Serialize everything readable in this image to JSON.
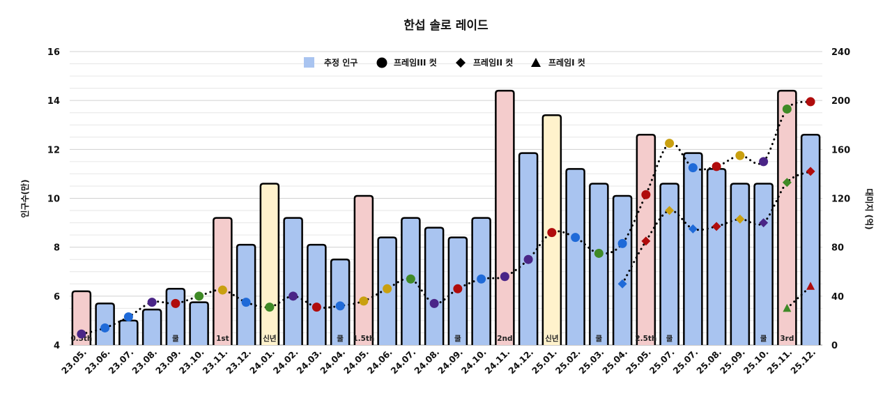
{
  "chart_data": {
    "type": "bar+line",
    "title": "한섭 솔로 레이드",
    "ylabel_left": "인구수(만)",
    "ylabel_right": "대미지 (억)",
    "ylim_left": [
      4,
      16
    ],
    "yticks_left": [
      4,
      6,
      8,
      10,
      12,
      14,
      16
    ],
    "ylim_right": [
      0,
      240
    ],
    "yticks_right": [
      0,
      40,
      80,
      120,
      160,
      200,
      240
    ],
    "grid": true,
    "legend_position": "top-center",
    "categories": [
      "23.05.",
      "23.06.",
      "23.07.",
      "23.08.",
      "23.09.",
      "23.10.",
      "23.11.",
      "23.12.",
      "24.01.",
      "24.02.",
      "24.03.",
      "24.04.",
      "24.05.",
      "24.06.",
      "24.07.",
      "24.08.",
      "24.09.",
      "24.10.",
      "24.11.",
      "24.12.",
      "25.01.",
      "25.02.",
      "25.03.",
      "25.04.",
      "25.05.",
      "25.07.",
      "25.07.",
      "25.08.",
      "25.09.",
      "25.10.",
      "25.11.",
      "25.12."
    ],
    "bar_series": {
      "name": "추정 인구",
      "axis": "left",
      "values": [
        6.2,
        5.7,
        5.0,
        5.45,
        6.3,
        5.75,
        9.2,
        8.1,
        10.6,
        9.2,
        8.1,
        7.5,
        10.1,
        8.4,
        9.2,
        8.8,
        8.4,
        9.2,
        14.4,
        11.85,
        13.4,
        11.2,
        10.6,
        10.1,
        12.6,
        10.6,
        11.85,
        11.2,
        10.6,
        10.6,
        14.4,
        12.6
      ],
      "bar_types": [
        "pink",
        "blue",
        "blue",
        "blue",
        "blue",
        "blue",
        "pink",
        "blue",
        "yellow",
        "blue",
        "blue",
        "blue",
        "pink",
        "blue",
        "blue",
        "blue",
        "blue",
        "blue",
        "pink",
        "blue",
        "yellow",
        "blue",
        "blue",
        "blue",
        "pink",
        "blue",
        "blue",
        "blue",
        "blue",
        "blue",
        "pink",
        "blue"
      ],
      "bar_labels": [
        "0.5th",
        "",
        "",
        "",
        "쿨",
        "",
        "1st",
        "",
        "신년",
        "",
        "",
        "쿨",
        "1.5th",
        "",
        "",
        "",
        "쿨",
        "",
        "2nd",
        "",
        "신년",
        "",
        "쿨",
        "",
        "2.5th",
        "쿨",
        "",
        "",
        "",
        "쿨",
        "3rd",
        ""
      ]
    },
    "line_series": [
      {
        "name": "프레임III 컷",
        "marker": "circle",
        "axis": "right",
        "values": [
          9,
          14,
          23,
          35,
          34,
          40,
          45,
          35,
          31,
          40,
          31,
          32,
          36,
          46,
          54,
          34,
          46,
          54,
          56,
          70,
          92,
          88,
          75,
          83,
          123,
          165,
          145,
          146,
          155,
          150,
          193,
          199
        ],
        "point_colors": [
          "purple",
          "blue",
          "blue",
          "purple",
          "red",
          "green",
          "gold",
          "blue",
          "green",
          "purple",
          "red",
          "blue",
          "gold",
          "gold",
          "green",
          "purple",
          "red",
          "blue",
          "purple",
          "purple",
          "red",
          "blue",
          "green",
          "blue",
          "red",
          "gold",
          "blue",
          "red",
          "gold",
          "purple",
          "green",
          "red"
        ]
      },
      {
        "name": "프레임II 컷",
        "marker": "diamond",
        "axis": "right",
        "values": [
          null,
          null,
          null,
          null,
          null,
          null,
          null,
          null,
          null,
          null,
          null,
          null,
          null,
          null,
          null,
          null,
          null,
          null,
          null,
          null,
          null,
          null,
          null,
          50,
          85,
          110,
          95,
          97,
          103,
          100,
          133,
          142
        ],
        "point_colors": [
          null,
          null,
          null,
          null,
          null,
          null,
          null,
          null,
          null,
          null,
          null,
          null,
          null,
          null,
          null,
          null,
          null,
          null,
          null,
          null,
          null,
          null,
          null,
          "blue",
          "red",
          "gold",
          "blue",
          "red",
          "gold",
          "purple",
          "green",
          "red"
        ]
      },
      {
        "name": "프레임I 컷",
        "marker": "triangle",
        "axis": "right",
        "values": [
          null,
          null,
          null,
          null,
          null,
          null,
          null,
          null,
          null,
          null,
          null,
          null,
          null,
          null,
          null,
          null,
          null,
          null,
          null,
          null,
          null,
          null,
          null,
          null,
          null,
          null,
          null,
          null,
          null,
          null,
          30,
          48
        ],
        "point_colors": [
          null,
          null,
          null,
          null,
          null,
          null,
          null,
          null,
          null,
          null,
          null,
          null,
          null,
          null,
          null,
          null,
          null,
          null,
          null,
          null,
          null,
          null,
          null,
          null,
          null,
          null,
          null,
          null,
          null,
          null,
          "green",
          "red"
        ]
      }
    ],
    "colors": {
      "blue_bar": "#a9c4f0",
      "pink_bar": "#f4cccc",
      "yellow_bar": "#fff2cc",
      "legend_bar": "#a9c4f0",
      "purple": "#4a2587",
      "blue": "#1f6ad8",
      "gold": "#c9a010",
      "green": "#3f8a26",
      "red": "#b00c0c"
    }
  }
}
